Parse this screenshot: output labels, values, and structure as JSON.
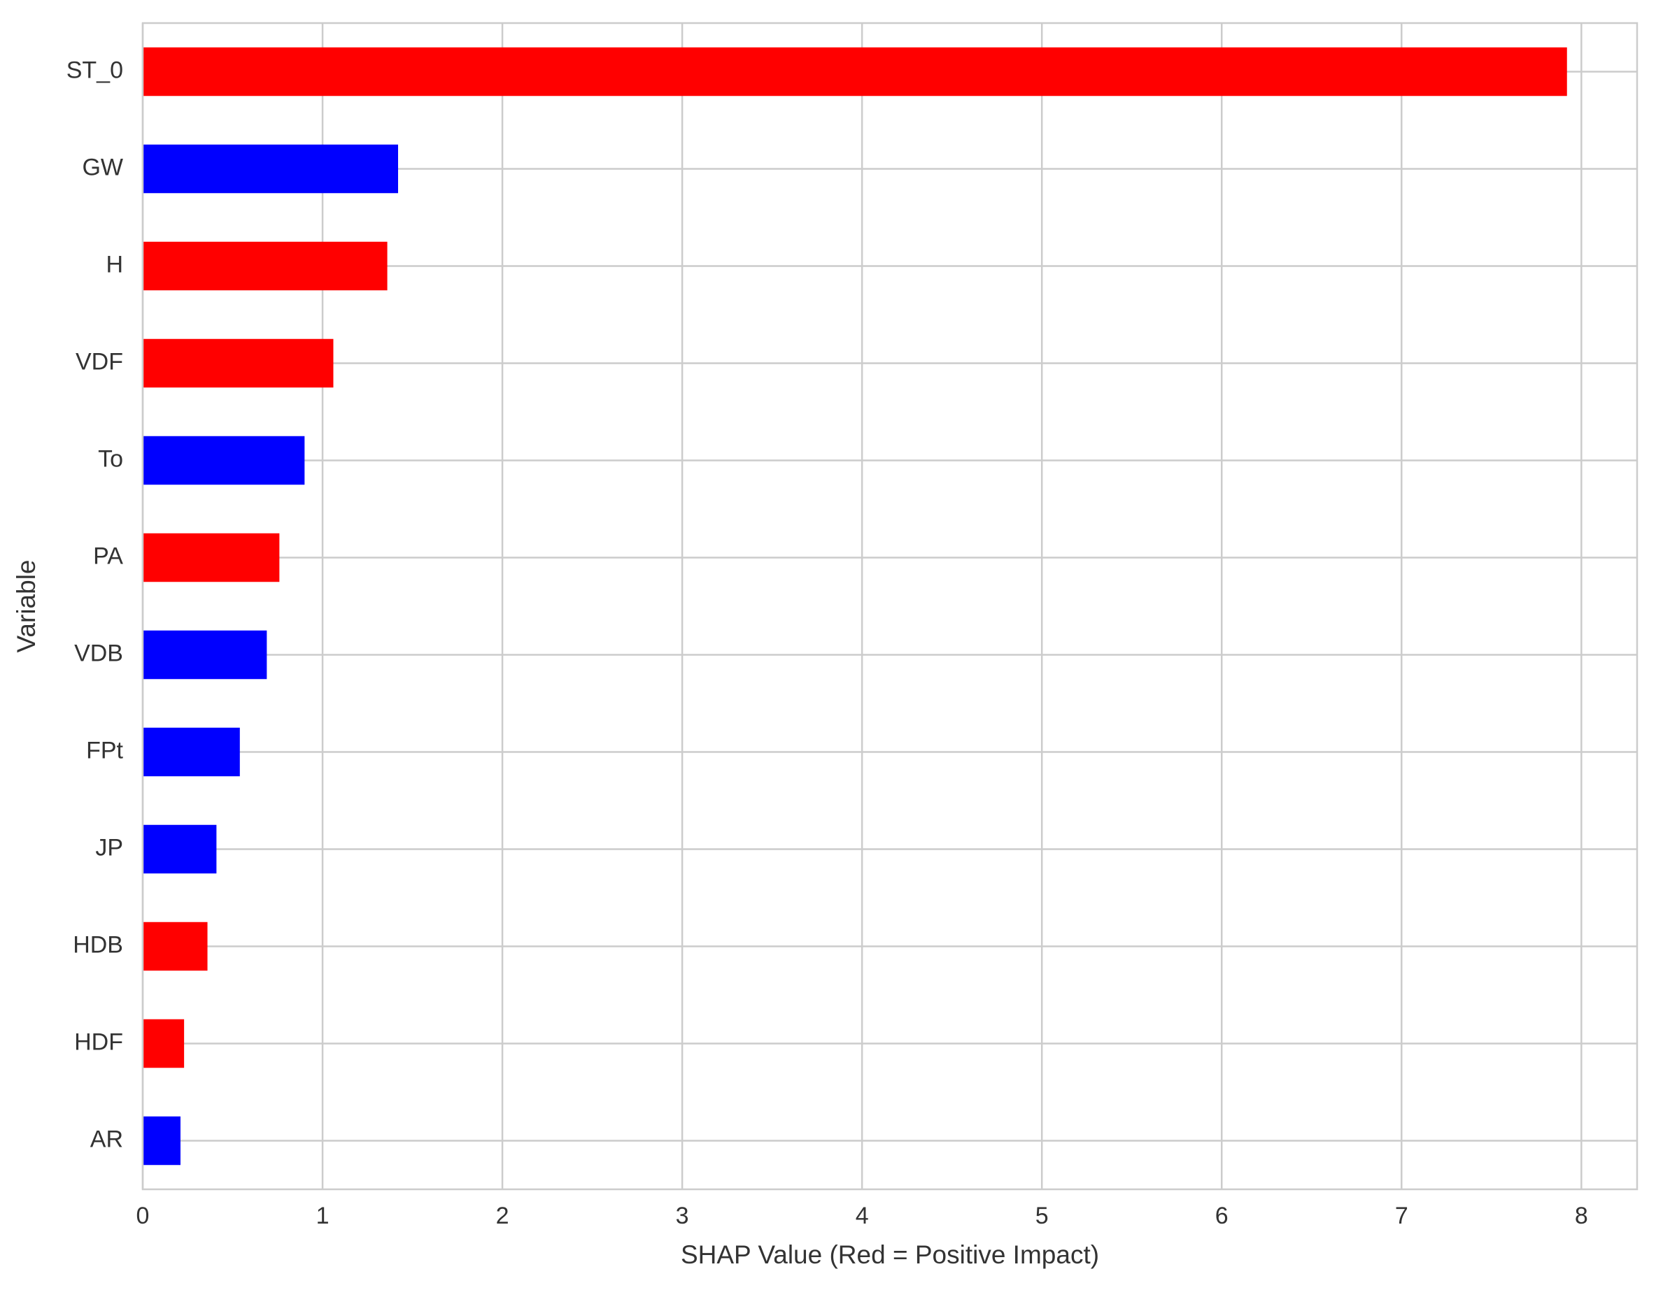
{
  "chart_data": {
    "type": "barh",
    "xlabel": "SHAP Value (Red = Positive Impact)",
    "ylabel": "Variable",
    "categories": [
      "ST_0",
      "GW",
      "H",
      "VDF",
      "To",
      "PA",
      "VDB",
      "FPt",
      "JP",
      "HDB",
      "HDF",
      "AR"
    ],
    "values": [
      7.92,
      1.42,
      1.36,
      1.06,
      0.9,
      0.76,
      0.69,
      0.54,
      0.41,
      0.36,
      0.23,
      0.21
    ],
    "colors": [
      "#ff0000",
      "#0000ff",
      "#ff0000",
      "#ff0000",
      "#0000ff",
      "#ff0000",
      "#0000ff",
      "#0000ff",
      "#0000ff",
      "#ff0000",
      "#ff0000",
      "#0000ff"
    ],
    "xlim": [
      0,
      8.31
    ],
    "xticks": [
      0,
      1,
      2,
      3,
      4,
      5,
      6,
      7,
      8
    ],
    "grid": true
  }
}
